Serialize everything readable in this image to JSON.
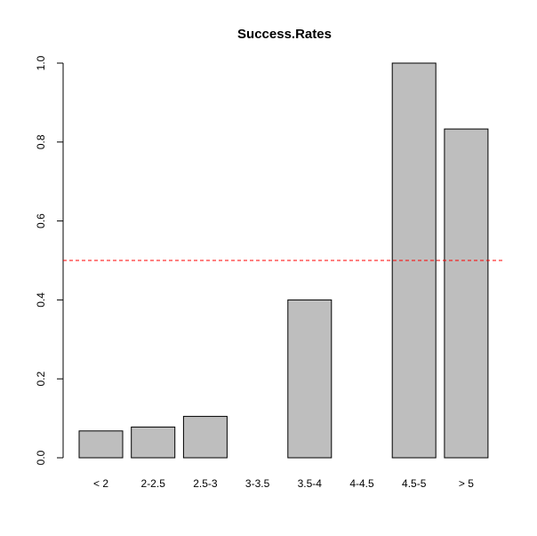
{
  "chart_data": {
    "type": "bar",
    "title": "Success.Rates",
    "xlabel": "",
    "ylabel": "",
    "categories": [
      "< 2",
      "2-2.5",
      "2.5-3",
      "3-3.5",
      "3.5-4",
      "4-4.5",
      "4.5-5",
      "> 5"
    ],
    "values": [
      0.068,
      0.078,
      0.105,
      0.0,
      0.4,
      0.0,
      1.0,
      0.833
    ],
    "ylim": [
      0,
      1
    ],
    "yticks": [
      "0.0",
      "0.2",
      "0.4",
      "0.6",
      "0.8",
      "1.0"
    ],
    "ytick_values": [
      0,
      0.2,
      0.4,
      0.6,
      0.8,
      1.0
    ],
    "reference_line": {
      "y": 0.5,
      "style": "dashed",
      "color": "#ff0000"
    },
    "bar_color": "#bebebe",
    "grid": false,
    "legend": "none"
  }
}
